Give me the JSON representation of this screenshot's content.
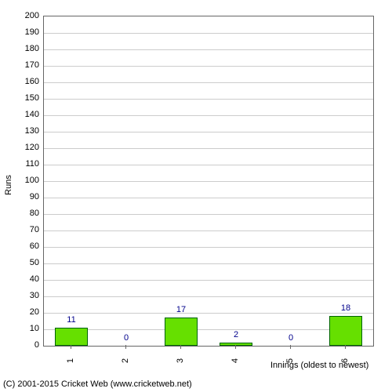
{
  "chart": {
    "type": "bar",
    "ylabel": "Runs",
    "xlabel": "Innings (oldest to newest)",
    "categories": [
      "1",
      "2",
      "3",
      "4",
      "5",
      "6"
    ],
    "values": [
      11,
      0,
      17,
      2,
      0,
      18
    ],
    "value_labels": [
      "11",
      "0",
      "17",
      "2",
      "0",
      "18"
    ],
    "ylim": [
      0,
      200
    ],
    "ytick_step": 10,
    "bar_color": "#66e000",
    "bar_border_color": "#006400",
    "label_color": "#00008b",
    "grid_color": "#cccccc",
    "background_color": "#ffffff",
    "axis_color": "#666666",
    "label_fontsize": 11,
    "bar_width_ratio": 0.6
  },
  "copyright": "(C) 2001-2015 Cricket Web (www.cricketweb.net)"
}
